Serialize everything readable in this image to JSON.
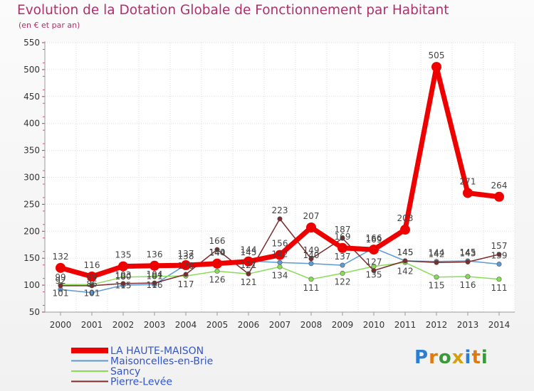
{
  "title": "Evolution de la Dotation Globale de Fonctionnement par Habitant",
  "subtitle": "(en € et par an)",
  "brand": "Proxiti",
  "chart_data": {
    "type": "line",
    "title": "Evolution de la Dotation Globale de Fonctionnement par Habitant",
    "ylabel": "(en € et par an)",
    "xlabel": "",
    "ylim": [
      50,
      550
    ],
    "yticks": [
      50,
      100,
      150,
      200,
      250,
      300,
      350,
      400,
      450,
      500,
      550
    ],
    "grid": true,
    "legend": "bottom-left",
    "categories": [
      "2000",
      "2001",
      "2002",
      "2003",
      "2004",
      "2005",
      "2006",
      "2007",
      "2008",
      "2009",
      "2010",
      "2011",
      "2012",
      "2013",
      "2014"
    ],
    "series": [
      {
        "name": "LA HAUTE-MAISON",
        "color": "#ee0000",
        "values": [
          132,
          116,
          135,
          136,
          137,
          140,
          144,
          156,
          207,
          169,
          166,
          203,
          505,
          271,
          264
        ]
      },
      {
        "name": "Maisoncelles-en-Brie",
        "color": "#5b9bd5",
        "values": [
          92,
          86,
          100,
          101,
          138,
          144,
          145,
          142,
          140,
          137,
          169,
          145,
          144,
          145,
          139
        ]
      },
      {
        "name": "Sancy",
        "color": "#88dd55",
        "values": [
          101,
          101,
          115,
          116,
          117,
          126,
          121,
          134,
          111,
          122,
          135,
          142,
          115,
          116,
          111
        ]
      },
      {
        "name": "Pierre-Levée",
        "color": "#7b2c2c",
        "values": [
          99,
          99,
          103,
          104,
          120,
          166,
          121,
          223,
          149,
          187,
          127,
          145,
          142,
          143,
          157
        ]
      }
    ],
    "labels": {
      "LA HAUTE-MAISON": [
        "132",
        "116",
        "135",
        "136",
        "137",
        "140",
        "144",
        "156",
        "207",
        "169",
        "166",
        "203",
        "505",
        "271",
        "264"
      ],
      "Maisoncelles-en-Brie": [
        "92",
        "86",
        "100",
        "101",
        "138",
        "144",
        "145",
        "142",
        "140",
        "137",
        "169",
        "145",
        "144",
        "145",
        "139"
      ],
      "Sancy": [
        "101",
        "101",
        "115",
        "116",
        "117",
        "126",
        "121",
        "134",
        "111",
        "122",
        "135",
        "142",
        "115",
        "116",
        "111"
      ],
      "Pierre-Levée": [
        "99",
        "99",
        "103",
        "104",
        "120",
        "166",
        "121",
        "223",
        "149",
        "187",
        "127",
        "145",
        "142",
        "143",
        "157"
      ]
    }
  }
}
